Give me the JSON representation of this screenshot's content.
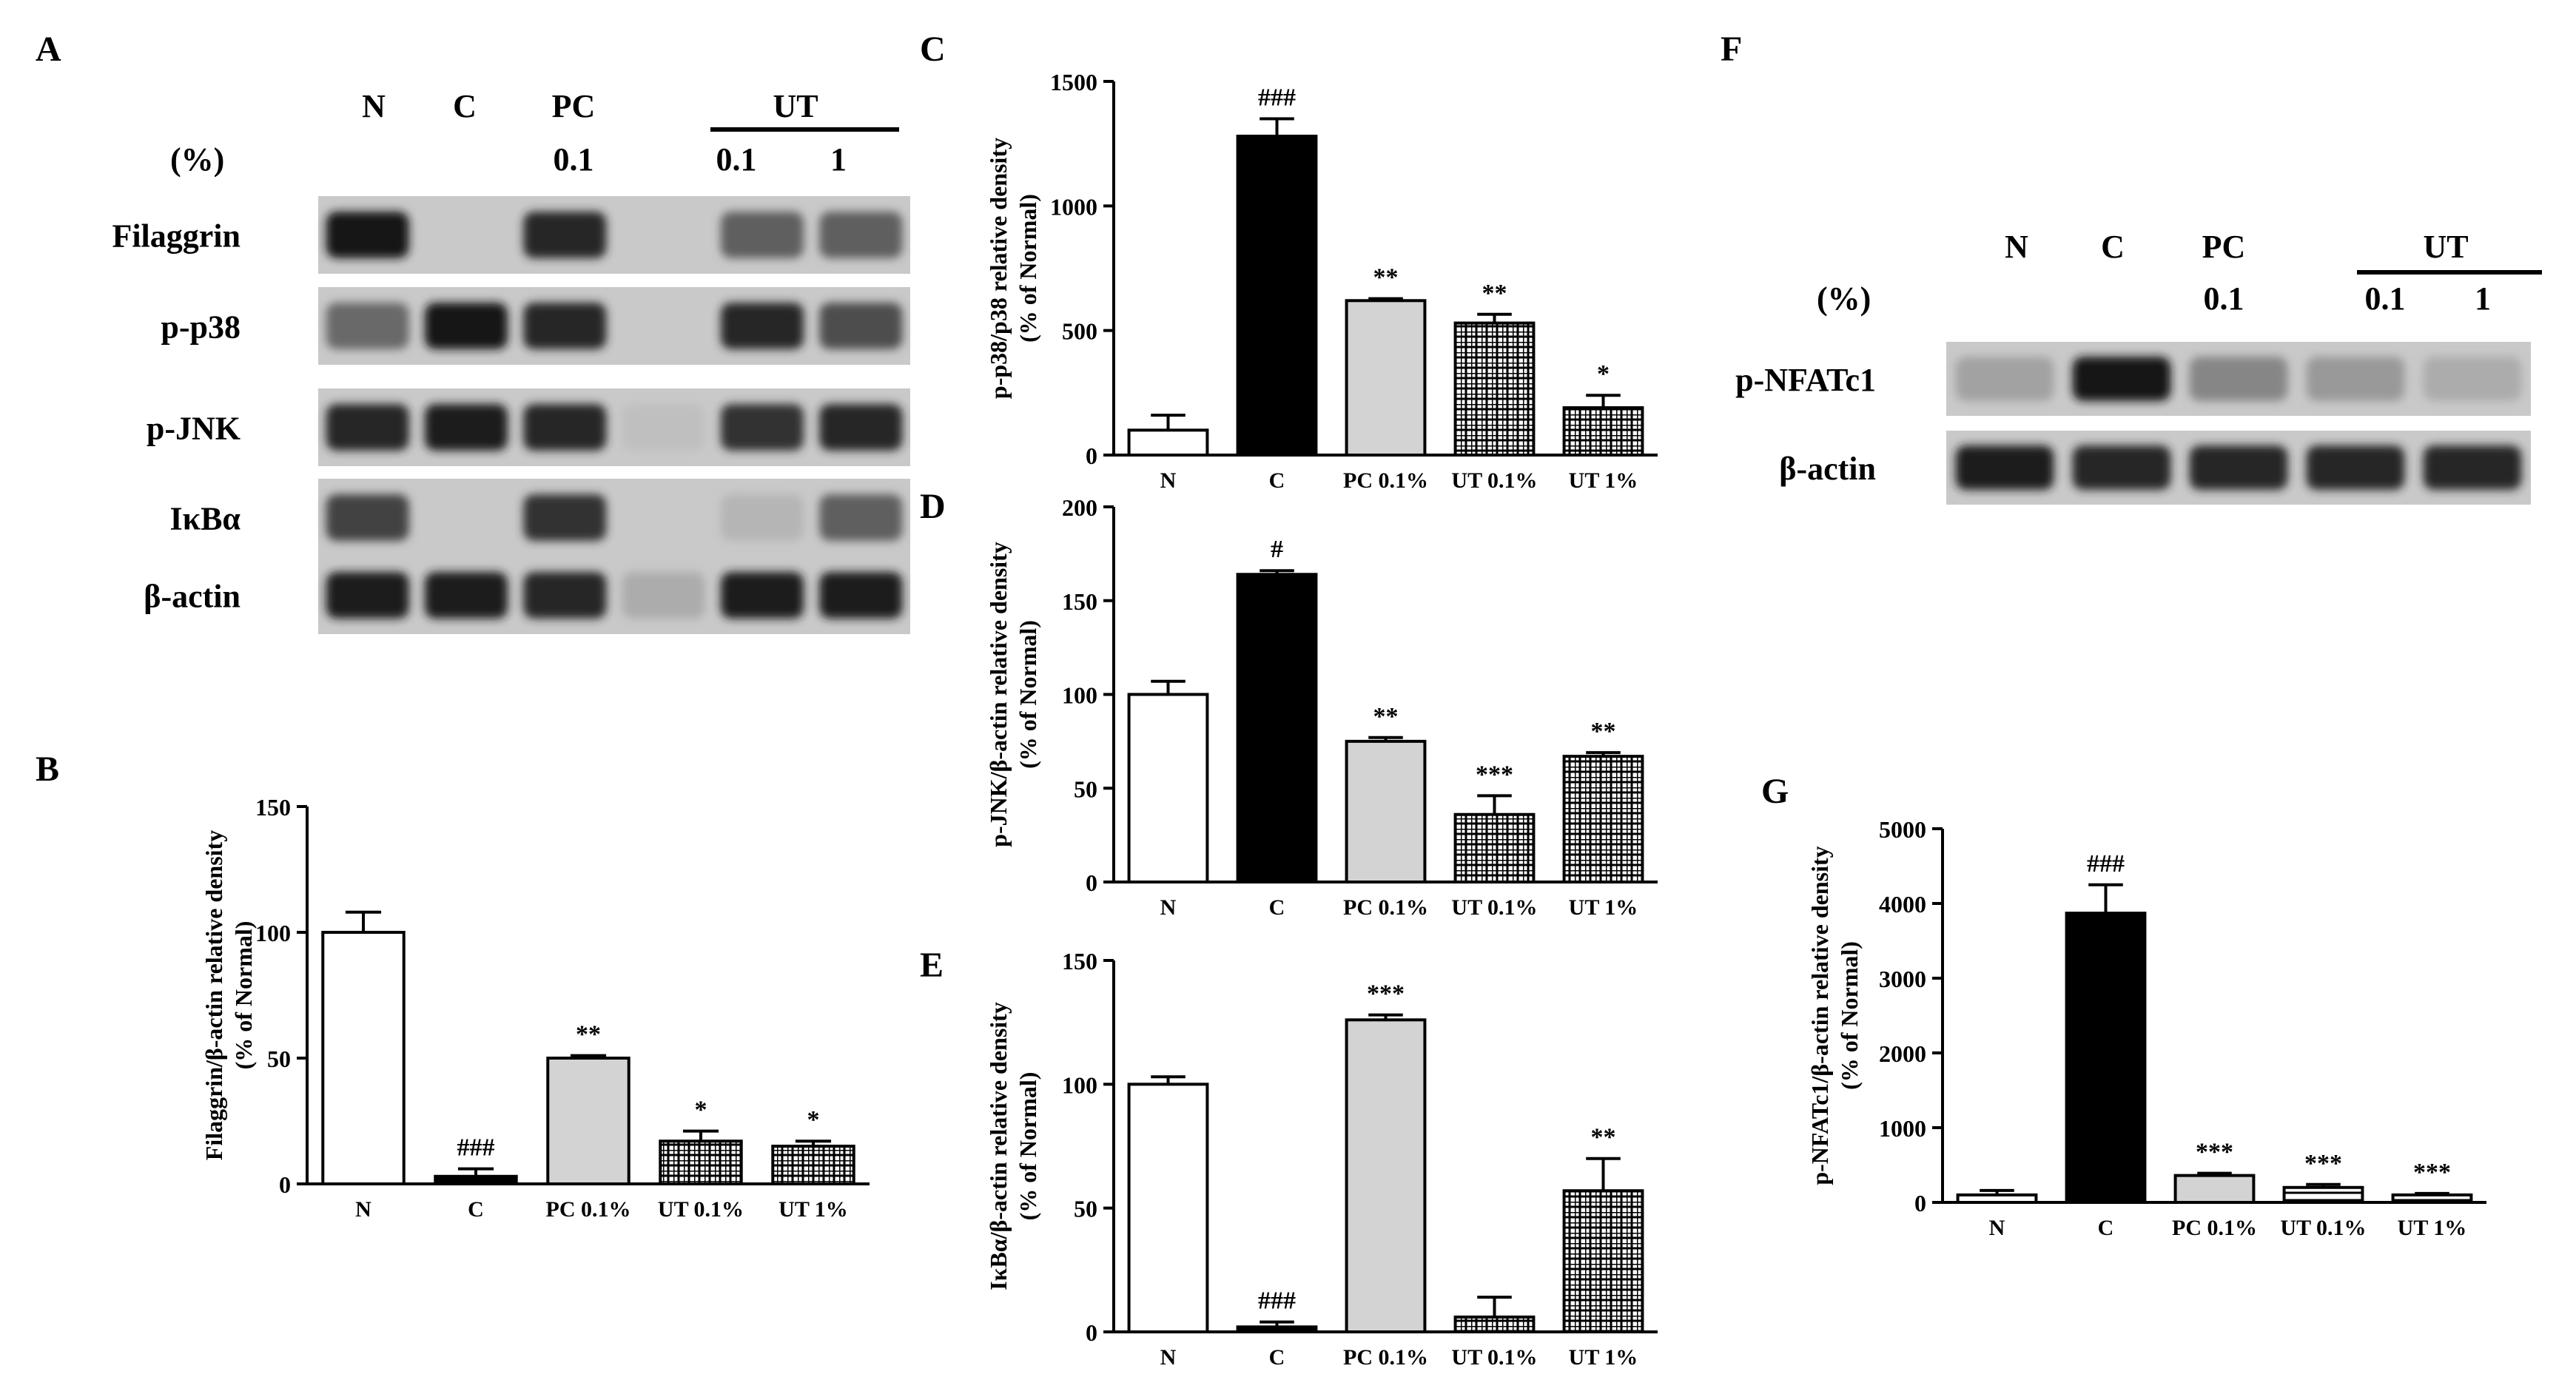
{
  "panels": {
    "A": {
      "letter": "A",
      "pct_label": "(%)",
      "lanes": [
        "N",
        "C",
        "PC",
        "",
        "UT",
        "UT"
      ],
      "lane_top": [
        "N",
        "C",
        "PC",
        "UT"
      ],
      "lane_bottom": [
        "0.1",
        "0.1",
        "1"
      ],
      "rows": [
        {
          "label": "Filaggrin",
          "intensity": [
            0.95,
            0.0,
            0.85,
            0.0,
            0.55,
            0.55
          ]
        },
        {
          "label": "p-p38",
          "intensity": [
            0.5,
            0.95,
            0.85,
            0.0,
            0.85,
            0.65
          ]
        },
        {
          "label": "p-JNK",
          "intensity": [
            0.85,
            0.9,
            0.85,
            0.05,
            0.8,
            0.85
          ]
        },
        {
          "label": "IκBα",
          "intensity": [
            0.7,
            0.0,
            0.8,
            0.0,
            0.1,
            0.55
          ]
        },
        {
          "label": "β-actin",
          "intensity": [
            0.9,
            0.9,
            0.85,
            0.15,
            0.9,
            0.9
          ]
        }
      ]
    },
    "F": {
      "letter": "F",
      "pct_label": "(%)",
      "lane_top": [
        "N",
        "C",
        "PC",
        "UT"
      ],
      "lane_bottom": [
        "0.1",
        "0.1",
        "1"
      ],
      "rows": [
        {
          "label": "p-NFATc1",
          "intensity": [
            0.2,
            0.95,
            0.35,
            0.25,
            0.15
          ]
        },
        {
          "label": "β-actin",
          "intensity": [
            0.9,
            0.85,
            0.85,
            0.85,
            0.85
          ]
        }
      ]
    }
  },
  "chart_data": [
    {
      "panel": "B",
      "type": "bar",
      "categories": [
        "N",
        "C",
        "PC 0.1%",
        "UT 0.1%",
        "UT 1%"
      ],
      "values": [
        100,
        3,
        50,
        17,
        15
      ],
      "errors": [
        8,
        3,
        1,
        4,
        2
      ],
      "annotations": [
        "",
        "###",
        "**",
        "*",
        "*"
      ],
      "ylabel": "Filaggrin/β-actin relative density\n(% of Normal)",
      "ylim": [
        0,
        150
      ],
      "yticks": [
        0,
        50,
        100,
        150
      ],
      "patterns": [
        "white",
        "black",
        "gray",
        "grid",
        "grid"
      ]
    },
    {
      "panel": "C",
      "type": "bar",
      "categories": [
        "N",
        "C",
        "PC 0.1%",
        "UT 0.1%",
        "UT 1%"
      ],
      "values": [
        100,
        1280,
        620,
        530,
        190
      ],
      "errors": [
        60,
        70,
        8,
        35,
        50
      ],
      "annotations": [
        "",
        "###",
        "**",
        "**",
        "*"
      ],
      "ylabel": "p-p38/p38 relative density\n(% of Normal)",
      "ylim": [
        0,
        1500
      ],
      "yticks": [
        0,
        500,
        1000,
        1500
      ],
      "patterns": [
        "white",
        "black",
        "gray",
        "grid",
        "grid"
      ]
    },
    {
      "panel": "D",
      "type": "bar",
      "categories": [
        "N",
        "C",
        "PC 0.1%",
        "UT 0.1%",
        "UT 1%"
      ],
      "values": [
        100,
        164,
        75,
        36,
        67
      ],
      "errors": [
        7,
        2,
        2,
        10,
        2
      ],
      "annotations": [
        "",
        "#",
        "**",
        "***",
        "**"
      ],
      "ylabel": "p-JNK/β-actin relative density\n(% of Normal)",
      "ylim": [
        0,
        200
      ],
      "yticks": [
        0,
        50,
        100,
        150,
        200
      ],
      "patterns": [
        "white",
        "black",
        "gray",
        "grid",
        "grid"
      ]
    },
    {
      "panel": "E",
      "type": "bar",
      "categories": [
        "N",
        "C",
        "PC 0.1%",
        "UT 0.1%",
        "UT 1%"
      ],
      "values": [
        100,
        2,
        126,
        6,
        57
      ],
      "errors": [
        3,
        2,
        2,
        8,
        13
      ],
      "annotations": [
        "",
        "###",
        "***",
        "",
        "**"
      ],
      "ylabel": "IκBα/β-actin relative density\n(% of Normal)",
      "ylim": [
        0,
        150
      ],
      "yticks": [
        0,
        50,
        100,
        150
      ],
      "patterns": [
        "white",
        "black",
        "gray",
        "grid",
        "grid"
      ]
    },
    {
      "panel": "G",
      "type": "bar",
      "categories": [
        "N",
        "C",
        "PC 0.1%",
        "UT 0.1%",
        "UT 1%"
      ],
      "values": [
        100,
        3870,
        360,
        200,
        100
      ],
      "errors": [
        60,
        380,
        30,
        40,
        20
      ],
      "annotations": [
        "",
        "###",
        "***",
        "***",
        "***"
      ],
      "ylabel": "p-NFATc1/β-actin relative density\n(% of Normal)",
      "ylim": [
        0,
        5000
      ],
      "yticks": [
        0,
        1000,
        2000,
        3000,
        4000,
        5000
      ],
      "patterns": [
        "white",
        "black",
        "gray",
        "stripes",
        "stripes"
      ]
    }
  ]
}
